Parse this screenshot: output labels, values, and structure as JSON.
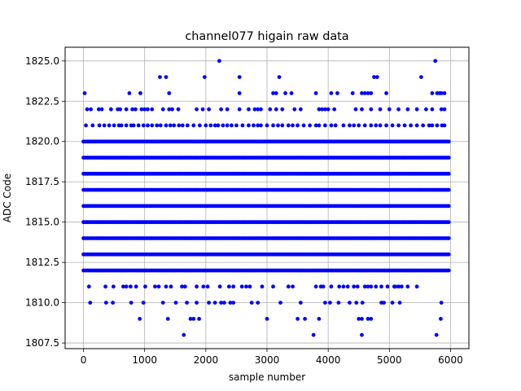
{
  "chart_data": {
    "type": "scatter",
    "title": "channel077 higain raw data",
    "xlabel": "sample number",
    "ylabel": "ADC Code",
    "xlim": [
      -300,
      6300
    ],
    "ylim": [
      1807.15,
      1825.85
    ],
    "x_ticks": [
      0,
      1000,
      2000,
      3000,
      4000,
      5000,
      6000
    ],
    "y_ticks": [
      1807.5,
      1810.0,
      1812.5,
      1815.0,
      1817.5,
      1820.0,
      1822.5,
      1825.0
    ],
    "grid": true,
    "marker_color": "#0000ff",
    "n_samples": 6000,
    "dense_levels": [
      1812,
      1813,
      1814,
      1815,
      1816,
      1817,
      1818,
      1819,
      1820
    ],
    "level_21": [
      40,
      150,
      260,
      340,
      420,
      500,
      580,
      620,
      700,
      780,
      820,
      900,
      980,
      1050,
      1120,
      1200,
      1260,
      1350,
      1420,
      1480,
      1560,
      1620,
      1700,
      1800,
      1900,
      2000,
      2080,
      2150,
      2200,
      2280,
      2350,
      2420,
      2500,
      2600,
      2700,
      2780,
      2850,
      2900,
      3000,
      3100,
      3180,
      3250,
      3350,
      3420,
      3500,
      3600,
      3700,
      3800,
      3850,
      3950,
      4050,
      4120,
      4250,
      4350,
      4420,
      4500,
      4600,
      4700,
      4780,
      4850,
      4950,
      5050,
      5150,
      5250,
      5350,
      5450,
      5550,
      5650,
      5700,
      5780,
      5860,
      5900
    ],
    "level_22": [
      60,
      120,
      250,
      300,
      450,
      560,
      600,
      700,
      800,
      850,
      950,
      1000,
      1050,
      1120,
      1300,
      1400,
      1450,
      1550,
      1850,
      1950,
      2050,
      2250,
      2350,
      2550,
      2700,
      2800,
      2850,
      2900,
      3050,
      3150,
      3250,
      3450,
      3550,
      3850,
      3900,
      3950,
      4000,
      4100,
      4450,
      4550,
      4700,
      4850,
      5000,
      5150,
      5300,
      5450,
      5600,
      5700,
      5850,
      5900
    ],
    "level_23": [
      20,
      750,
      930,
      1400,
      2550,
      3100,
      3150,
      3300,
      3400,
      3800,
      4050,
      4150,
      4400,
      4550,
      4600,
      4650,
      4700,
      4950,
      5700,
      5780,
      5820,
      5850,
      5900
    ],
    "level_24": [
      1250,
      1350,
      1980,
      2550,
      3200,
      4750,
      4800,
      5520
    ],
    "level_25": [
      2220,
      5750
    ],
    "level_11": [
      90,
      360,
      490,
      650,
      700,
      770,
      860,
      1010,
      1170,
      1230,
      1350,
      1430,
      1610,
      1660,
      1850,
      1960,
      2030,
      2230,
      2380,
      2450,
      2590,
      2660,
      2720,
      2920,
      3100,
      3350,
      3420,
      3800,
      3880,
      3920,
      4050,
      4180,
      4250,
      4320,
      4420,
      4480,
      4600,
      4650,
      4700,
      4780,
      4870,
      4970,
      5080,
      5100,
      5150,
      5200,
      5300,
      5450
    ],
    "level_10": [
      110,
      370,
      480,
      780,
      980,
      1300,
      1510,
      1690,
      1850,
      2050,
      2150,
      2250,
      2300,
      2400,
      2450,
      2750,
      2850,
      3220,
      3550,
      3950,
      4030,
      4170,
      4350,
      4460,
      4560,
      4870,
      4910,
      5050,
      5170,
      5850
    ],
    "level_09": [
      920,
      1380,
      1750,
      1800,
      1890,
      3000,
      3500,
      3620,
      3850,
      4500,
      4550,
      4650,
      4700,
      5840
    ],
    "level_08": [
      1640,
      3760,
      4550,
      5770
    ]
  }
}
